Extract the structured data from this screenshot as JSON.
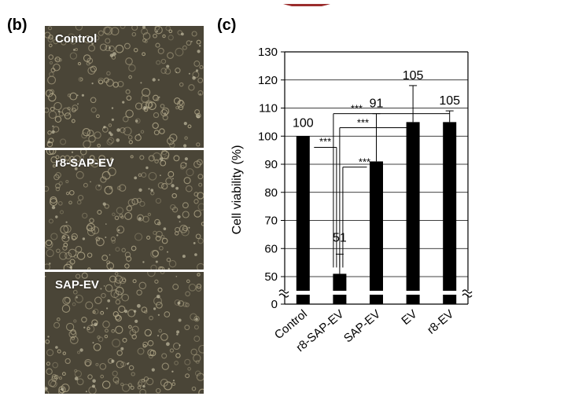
{
  "figure": {
    "label_b": "(b)",
    "label_c": "(c)"
  },
  "micrographs": [
    {
      "label": "Control"
    },
    {
      "label": "r8-SAP-EV"
    },
    {
      "label": "SAP-EV"
    }
  ],
  "colors": {
    "bar": "#000000",
    "micrograph_bg": "#4a4537",
    "cell": "#b3a98a",
    "label": "#ffffff"
  },
  "chart_data": {
    "type": "bar",
    "categories": [
      "Control",
      "r8-SAP-EV",
      "SAP-EV",
      "EV",
      "r8-EV"
    ],
    "values": [
      100,
      51,
      91,
      105,
      105
    ],
    "error": [
      0,
      7,
      17,
      13,
      4
    ],
    "data_labels": [
      "100",
      "51",
      "91",
      "105",
      "105"
    ],
    "ylabel": "Cell viability (%)",
    "y_ticks": [
      "0",
      "50",
      "60",
      "70",
      "80",
      "90",
      "100",
      "110",
      "120",
      "130"
    ],
    "ylim": [
      0,
      130
    ],
    "axis_break": [
      0,
      45
    ],
    "grid": true,
    "significance": [
      {
        "from": "Control",
        "to": "r8-SAP-EV",
        "label": "***"
      },
      {
        "from": "r8-SAP-EV",
        "to": "SAP-EV",
        "label": "***"
      },
      {
        "from": "r8-SAP-EV",
        "to": "EV",
        "label": "***"
      },
      {
        "from": "r8-SAP-EV",
        "to": "r8-EV",
        "label": "***"
      }
    ]
  }
}
